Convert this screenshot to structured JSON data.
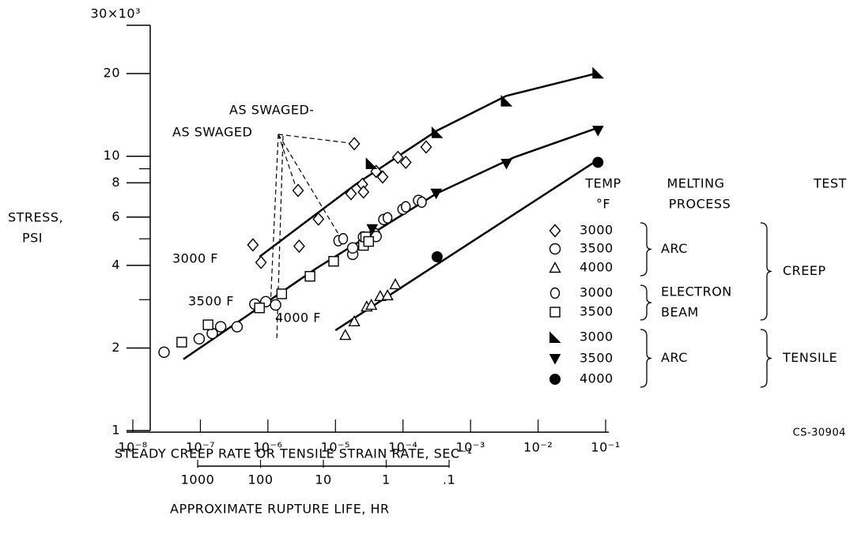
{
  "chart_data": {
    "type": "scatter",
    "xscale": "log",
    "yscale": "log",
    "xlabel": "STEADY CREEP RATE OR TENSILE STRAIN RATE, SEC⁻¹",
    "ylabel": [
      "STRESS,",
      "PSI"
    ],
    "xlim": [
      1e-08,
      0.1
    ],
    "ylim": [
      1,
      30
    ],
    "xticks": [
      {
        "value": 1e-08,
        "label": "10⁻⁸"
      },
      {
        "value": 1e-07,
        "label": "10⁻⁷"
      },
      {
        "value": 1e-06,
        "label": "10⁻⁶"
      },
      {
        "value": 1e-05,
        "label": "10⁻⁵"
      },
      {
        "value": 0.0001,
        "label": "10⁻⁴"
      },
      {
        "value": 0.001,
        "label": "10⁻³"
      },
      {
        "value": 0.01,
        "label": "10⁻²"
      },
      {
        "value": 0.1,
        "label": "10⁻¹"
      }
    ],
    "yticks": [
      1,
      2,
      4,
      6,
      8,
      10,
      20,
      {
        "value": 30,
        "label": "30×10³"
      }
    ],
    "minor_yticks": [
      3,
      5,
      9
    ],
    "rupture_life_label": "APPROXIMATE RUPTURE LIFE, HR",
    "rupture_life_lim": [
      1000,
      0.1
    ],
    "rupture_life_ticks": [
      1000,
      100,
      10,
      1,
      {
        "value": 0.1,
        "label": ".1"
      }
    ],
    "series": [
      {
        "name": "3000",
        "marker": "diamond",
        "color": "#000000",
        "x": [
          6e-07,
          7.9e-07,
          2.9e-06,
          5.6e-06,
          2.8e-06,
          1.7e-05,
          2.5e-05,
          2.6e-05,
          4e-05,
          5e-05,
          8.4e-05,
          0.00011,
          0.00022,
          1.9e-05
        ],
        "values": [
          4.75,
          4.1,
          4.7,
          5.9,
          7.5,
          7.3,
          7.9,
          7.4,
          8.8,
          8.4,
          9.9,
          9.5,
          10.8,
          11.1
        ]
      },
      {
        "name": "3500",
        "marker": "circle",
        "color": "#000000",
        "x": [
          2.9e-08,
          9.6e-08,
          1.5e-07,
          2e-07,
          3.5e-07,
          6.4e-07,
          9.3e-07,
          1.3e-06,
          1.8e-05,
          1.8e-05,
          2.6e-05,
          3e-05,
          3.8e-05,
          4e-05,
          5.2e-05,
          0.0001,
          0.00017
        ],
        "values": [
          1.93,
          2.16,
          2.26,
          2.39,
          2.39,
          2.89,
          2.95,
          2.87,
          4.39,
          4.63,
          5.08,
          4.98,
          5.22,
          5.1,
          5.88,
          6.41,
          6.9
        ]
      },
      {
        "name": "4000",
        "marker": "triangle",
        "color": "#000000",
        "x": [
          1.4e-05,
          1.9e-05,
          2.9e-05,
          3.4e-05,
          4.6e-05,
          5.9e-05,
          7.7e-05
        ],
        "values": [
          2.23,
          2.5,
          2.83,
          2.87,
          3.09,
          3.11,
          3.41
        ]
      },
      {
        "name": "3000",
        "marker": "ellipse",
        "color": "#000000",
        "x": [
          1.1e-05,
          1.3e-05,
          5.9e-05,
          0.00011,
          0.00019
        ],
        "values": [
          4.92,
          5.0,
          5.96,
          6.54,
          6.8
        ]
      },
      {
        "name": "3500",
        "marker": "square",
        "color": "#000000",
        "x": [
          5.3e-08,
          1.3e-07,
          7.5e-07,
          1.6e-06,
          4.2e-06,
          9.4e-06,
          2.6e-05,
          2.8e-05,
          3.1e-05
        ],
        "values": [
          2.1,
          2.43,
          2.8,
          3.15,
          3.65,
          4.14,
          4.73,
          5.08,
          4.89
        ]
      },
      {
        "name": "3000",
        "marker": "tri-right-filled",
        "color": "#000000",
        "x": [
          3.4e-05,
          0.00032,
          0.0034,
          0.077
        ],
        "values": [
          9.4,
          12.2,
          15.9,
          20.1
        ]
      },
      {
        "name": "3500",
        "marker": "tri-down-filled",
        "color": "#000000",
        "x": [
          3.5e-05,
          0.00031,
          0.0034,
          0.077
        ],
        "values": [
          5.43,
          7.32,
          9.4,
          12.4
        ]
      },
      {
        "name": "4000",
        "marker": "circle-filled",
        "color": "#000000",
        "x": [
          0.00032,
          0.077
        ],
        "values": [
          4.3,
          9.5
        ]
      }
    ],
    "curves": [
      {
        "name": "3000 F",
        "x": [
          7.5e-07,
          2e-05,
          0.00032,
          0.0034,
          0.077
        ],
        "y": [
          4.3,
          7.9,
          12.4,
          16.6,
          20.1
        ]
      },
      {
        "name": "3500 F",
        "x": [
          5.6e-08,
          5.2e-06,
          0.00031,
          0.0044,
          0.077
        ],
        "y": [
          1.82,
          3.9,
          7.3,
          9.9,
          12.7
        ]
      },
      {
        "name": "4000 F",
        "x": [
          1e-05,
          0.077
        ],
        "y": [
          2.32,
          9.7
        ]
      }
    ],
    "annotations": [
      "AS SWAGED-",
      "AS SWAGED"
    ],
    "legend": {
      "temp_header": [
        "TEMP",
        "°F"
      ],
      "process_header": [
        "MELTING",
        "PROCESS"
      ],
      "test_header": "TEST",
      "process_groups": [
        [
          "ARC"
        ],
        [
          "ELECTRON",
          "BEAM"
        ],
        [
          "ARC"
        ]
      ],
      "test_groups": [
        "CREEP",
        "TENSILE"
      ]
    },
    "figure_id": "CS-30904"
  }
}
